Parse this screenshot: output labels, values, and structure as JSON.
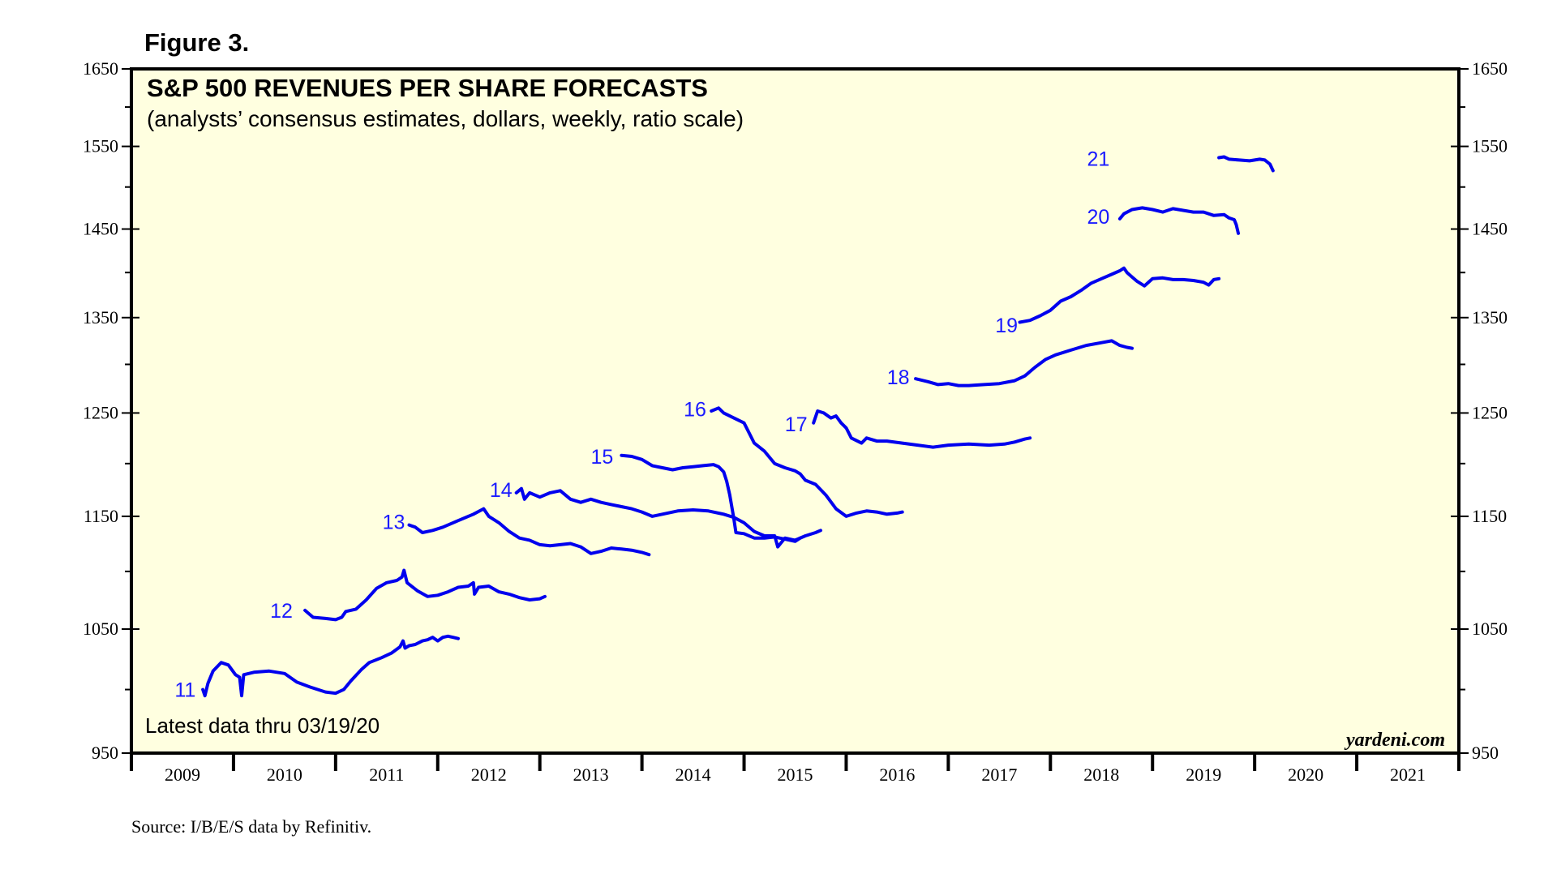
{
  "figure_label": "Figure 3.",
  "source": "Source: I/B/E/S data by Refinitiv.",
  "brand": "yardeni.com",
  "latest_note": "Latest data thru 03/19/20",
  "colors": {
    "series": "#0000ee",
    "label": "#1a1aff",
    "plot_bg": "#ffffe0",
    "frame": "#000000"
  },
  "chart_data": {
    "type": "line",
    "title": "S&P 500 REVENUES PER SHARE FORECASTS",
    "subtitle": "(analysts’ consensus estimates, dollars, weekly, ratio scale)",
    "scale": "log",
    "ylim": [
      950,
      1650
    ],
    "xlim": [
      2009.0,
      2022.0
    ],
    "y_ticks": [
      950,
      1050,
      1150,
      1250,
      1350,
      1450,
      1550,
      1650
    ],
    "y_tick_labels": [
      "950",
      "1050",
      "1150",
      "1250",
      "1350",
      "1450",
      "1550",
      "1650"
    ],
    "y_minor_ticks": [
      1000,
      1100,
      1200,
      1300,
      1400,
      1500,
      1600
    ],
    "x_tick_labels": [
      "2009",
      "2010",
      "2011",
      "2012",
      "2013",
      "2014",
      "2015",
      "2016",
      "2017",
      "2018",
      "2019",
      "2020",
      "2021"
    ],
    "series": [
      {
        "name": "11",
        "label_pos": [
          2009.63,
          1000
        ],
        "points": [
          [
            2009.7,
            1000
          ],
          [
            2009.72,
            995
          ],
          [
            2009.75,
            1005
          ],
          [
            2009.8,
            1015
          ],
          [
            2009.88,
            1022
          ],
          [
            2009.95,
            1020
          ],
          [
            2010.02,
            1012
          ],
          [
            2010.06,
            1010
          ],
          [
            2010.08,
            995
          ],
          [
            2010.1,
            1012
          ],
          [
            2010.2,
            1014
          ],
          [
            2010.35,
            1015
          ],
          [
            2010.5,
            1013
          ],
          [
            2010.62,
            1006
          ],
          [
            2010.75,
            1002
          ],
          [
            2010.9,
            998
          ],
          [
            2011.0,
            997
          ],
          [
            2011.08,
            1000
          ],
          [
            2011.15,
            1007
          ],
          [
            2011.25,
            1016
          ],
          [
            2011.33,
            1022
          ],
          [
            2011.45,
            1026
          ],
          [
            2011.55,
            1030
          ],
          [
            2011.63,
            1035
          ],
          [
            2011.66,
            1040
          ],
          [
            2011.68,
            1034
          ],
          [
            2011.72,
            1036
          ],
          [
            2011.78,
            1037
          ],
          [
            2011.85,
            1040
          ],
          [
            2011.9,
            1041
          ],
          [
            2011.95,
            1043
          ],
          [
            2012.0,
            1040
          ],
          [
            2012.05,
            1043
          ],
          [
            2012.1,
            1044
          ],
          [
            2012.15,
            1043
          ],
          [
            2012.2,
            1042
          ]
        ]
      },
      {
        "name": "12",
        "label_pos": [
          2010.58,
          1066
        ],
        "points": [
          [
            2010.7,
            1066
          ],
          [
            2010.78,
            1060
          ],
          [
            2010.9,
            1059
          ],
          [
            2011.0,
            1058
          ],
          [
            2011.06,
            1060
          ],
          [
            2011.1,
            1065
          ],
          [
            2011.2,
            1067
          ],
          [
            2011.3,
            1075
          ],
          [
            2011.4,
            1085
          ],
          [
            2011.5,
            1090
          ],
          [
            2011.6,
            1092
          ],
          [
            2011.65,
            1095
          ],
          [
            2011.67,
            1101
          ],
          [
            2011.7,
            1090
          ],
          [
            2011.8,
            1083
          ],
          [
            2011.9,
            1078
          ],
          [
            2012.0,
            1079
          ],
          [
            2012.1,
            1082
          ],
          [
            2012.2,
            1086
          ],
          [
            2012.3,
            1087
          ],
          [
            2012.35,
            1090
          ],
          [
            2012.36,
            1080
          ],
          [
            2012.4,
            1086
          ],
          [
            2012.5,
            1087
          ],
          [
            2012.6,
            1082
          ],
          [
            2012.7,
            1080
          ],
          [
            2012.8,
            1077
          ],
          [
            2012.9,
            1075
          ],
          [
            2013.0,
            1076
          ],
          [
            2013.05,
            1078
          ]
        ]
      },
      {
        "name": "13",
        "label_pos": [
          2011.68,
          1145
        ],
        "points": [
          [
            2011.72,
            1142
          ],
          [
            2011.78,
            1140
          ],
          [
            2011.85,
            1135
          ],
          [
            2011.95,
            1137
          ],
          [
            2012.05,
            1140
          ],
          [
            2012.2,
            1146
          ],
          [
            2012.35,
            1152
          ],
          [
            2012.45,
            1157
          ],
          [
            2012.5,
            1150
          ],
          [
            2012.6,
            1144
          ],
          [
            2012.7,
            1136
          ],
          [
            2012.8,
            1130
          ],
          [
            2012.9,
            1128
          ],
          [
            2013.0,
            1124
          ],
          [
            2013.1,
            1123
          ],
          [
            2013.2,
            1124
          ],
          [
            2013.3,
            1125
          ],
          [
            2013.4,
            1122
          ],
          [
            2013.5,
            1116
          ],
          [
            2013.6,
            1118
          ],
          [
            2013.7,
            1121
          ],
          [
            2013.8,
            1120
          ],
          [
            2013.9,
            1119
          ],
          [
            2014.0,
            1117
          ],
          [
            2014.07,
            1115
          ]
        ]
      },
      {
        "name": "14",
        "label_pos": [
          2012.73,
          1175
        ],
        "points": [
          [
            2012.77,
            1172
          ],
          [
            2012.82,
            1176
          ],
          [
            2012.85,
            1166
          ],
          [
            2012.9,
            1172
          ],
          [
            2013.0,
            1168
          ],
          [
            2013.1,
            1172
          ],
          [
            2013.2,
            1174
          ],
          [
            2013.3,
            1166
          ],
          [
            2013.4,
            1163
          ],
          [
            2013.5,
            1166
          ],
          [
            2013.6,
            1163
          ],
          [
            2013.7,
            1161
          ],
          [
            2013.8,
            1159
          ],
          [
            2013.9,
            1157
          ],
          [
            2014.0,
            1154
          ],
          [
            2014.1,
            1150
          ],
          [
            2014.2,
            1152
          ],
          [
            2014.35,
            1155
          ],
          [
            2014.5,
            1156
          ],
          [
            2014.65,
            1155
          ],
          [
            2014.8,
            1152
          ],
          [
            2014.9,
            1149
          ],
          [
            2015.0,
            1144
          ],
          [
            2015.1,
            1136
          ],
          [
            2015.2,
            1132
          ],
          [
            2015.3,
            1132
          ],
          [
            2015.33,
            1122
          ],
          [
            2015.4,
            1130
          ],
          [
            2015.5,
            1128
          ],
          [
            2015.6,
            1132
          ],
          [
            2015.7,
            1135
          ],
          [
            2015.75,
            1137
          ]
        ]
      },
      {
        "name": "15",
        "label_pos": [
          2013.72,
          1207
        ],
        "points": [
          [
            2013.8,
            1208
          ],
          [
            2013.9,
            1207
          ],
          [
            2014.0,
            1204
          ],
          [
            2014.1,
            1198
          ],
          [
            2014.2,
            1196
          ],
          [
            2014.3,
            1194
          ],
          [
            2014.4,
            1196
          ],
          [
            2014.5,
            1197
          ],
          [
            2014.6,
            1198
          ],
          [
            2014.7,
            1199
          ],
          [
            2014.75,
            1197
          ],
          [
            2014.8,
            1192
          ],
          [
            2014.83,
            1183
          ],
          [
            2014.86,
            1170
          ],
          [
            2014.9,
            1148
          ],
          [
            2014.92,
            1135
          ],
          [
            2015.0,
            1134
          ],
          [
            2015.1,
            1130
          ],
          [
            2015.2,
            1130
          ],
          [
            2015.3,
            1131
          ],
          [
            2015.4,
            1129
          ],
          [
            2015.5,
            1127
          ],
          [
            2015.55,
            1130
          ]
        ]
      },
      {
        "name": "16",
        "label_pos": [
          2014.63,
          1254
        ],
        "points": [
          [
            2014.68,
            1252
          ],
          [
            2014.75,
            1255
          ],
          [
            2014.8,
            1250
          ],
          [
            2014.9,
            1245
          ],
          [
            2015.0,
            1240
          ],
          [
            2015.05,
            1230
          ],
          [
            2015.1,
            1220
          ],
          [
            2015.2,
            1212
          ],
          [
            2015.3,
            1200
          ],
          [
            2015.4,
            1196
          ],
          [
            2015.5,
            1193
          ],
          [
            2015.55,
            1190
          ],
          [
            2015.6,
            1184
          ],
          [
            2015.7,
            1180
          ],
          [
            2015.8,
            1170
          ],
          [
            2015.9,
            1157
          ],
          [
            2016.0,
            1150
          ],
          [
            2016.1,
            1153
          ],
          [
            2016.2,
            1155
          ],
          [
            2016.3,
            1154
          ],
          [
            2016.4,
            1152
          ],
          [
            2016.5,
            1153
          ],
          [
            2016.55,
            1154
          ]
        ]
      },
      {
        "name": "17",
        "label_pos": [
          2015.62,
          1239
        ],
        "points": [
          [
            2015.68,
            1240
          ],
          [
            2015.72,
            1252
          ],
          [
            2015.78,
            1250
          ],
          [
            2015.85,
            1245
          ],
          [
            2015.9,
            1247
          ],
          [
            2015.95,
            1240
          ],
          [
            2016.0,
            1235
          ],
          [
            2016.05,
            1225
          ],
          [
            2016.15,
            1220
          ],
          [
            2016.2,
            1225
          ],
          [
            2016.3,
            1222
          ],
          [
            2016.4,
            1222
          ],
          [
            2016.55,
            1220
          ],
          [
            2016.7,
            1218
          ],
          [
            2016.85,
            1216
          ],
          [
            2017.0,
            1218
          ],
          [
            2017.2,
            1219
          ],
          [
            2017.4,
            1218
          ],
          [
            2017.55,
            1219
          ],
          [
            2017.65,
            1221
          ],
          [
            2017.75,
            1224
          ],
          [
            2017.8,
            1225
          ]
        ]
      },
      {
        "name": "18",
        "label_pos": [
          2016.62,
          1287
        ],
        "points": [
          [
            2016.68,
            1285
          ],
          [
            2016.8,
            1282
          ],
          [
            2016.9,
            1279
          ],
          [
            2017.0,
            1280
          ],
          [
            2017.1,
            1278
          ],
          [
            2017.2,
            1278
          ],
          [
            2017.35,
            1279
          ],
          [
            2017.5,
            1280
          ],
          [
            2017.65,
            1283
          ],
          [
            2017.75,
            1288
          ],
          [
            2017.85,
            1297
          ],
          [
            2017.95,
            1305
          ],
          [
            2018.05,
            1310
          ],
          [
            2018.2,
            1315
          ],
          [
            2018.35,
            1320
          ],
          [
            2018.5,
            1323
          ],
          [
            2018.6,
            1325
          ],
          [
            2018.68,
            1320
          ],
          [
            2018.75,
            1318
          ],
          [
            2018.8,
            1317
          ]
        ]
      },
      {
        "name": "19",
        "label_pos": [
          2017.68,
          1342
        ],
        "points": [
          [
            2017.7,
            1345
          ],
          [
            2017.8,
            1347
          ],
          [
            2017.9,
            1352
          ],
          [
            2018.0,
            1358
          ],
          [
            2018.1,
            1368
          ],
          [
            2018.2,
            1373
          ],
          [
            2018.3,
            1380
          ],
          [
            2018.4,
            1388
          ],
          [
            2018.5,
            1393
          ],
          [
            2018.6,
            1398
          ],
          [
            2018.68,
            1402
          ],
          [
            2018.72,
            1405
          ],
          [
            2018.75,
            1400
          ],
          [
            2018.8,
            1395
          ],
          [
            2018.85,
            1390
          ],
          [
            2018.92,
            1385
          ],
          [
            2019.0,
            1393
          ],
          [
            2019.1,
            1394
          ],
          [
            2019.2,
            1392
          ],
          [
            2019.3,
            1392
          ],
          [
            2019.4,
            1391
          ],
          [
            2019.5,
            1389
          ],
          [
            2019.55,
            1386
          ],
          [
            2019.6,
            1392
          ],
          [
            2019.65,
            1393
          ]
        ]
      },
      {
        "name": "20",
        "label_pos": [
          2018.58,
          1465
        ],
        "points": [
          [
            2018.68,
            1462
          ],
          [
            2018.72,
            1468
          ],
          [
            2018.8,
            1473
          ],
          [
            2018.9,
            1475
          ],
          [
            2019.0,
            1473
          ],
          [
            2019.1,
            1470
          ],
          [
            2019.2,
            1474
          ],
          [
            2019.3,
            1472
          ],
          [
            2019.4,
            1470
          ],
          [
            2019.5,
            1470
          ],
          [
            2019.6,
            1466
          ],
          [
            2019.7,
            1467
          ],
          [
            2019.75,
            1463
          ],
          [
            2019.8,
            1461
          ],
          [
            2019.82,
            1455
          ],
          [
            2019.84,
            1445
          ]
        ]
      },
      {
        "name": "21",
        "label_pos": [
          2018.58,
          1535
        ],
        "points": [
          [
            2019.65,
            1536
          ],
          [
            2019.7,
            1537
          ],
          [
            2019.75,
            1534
          ],
          [
            2019.85,
            1533
          ],
          [
            2019.95,
            1532
          ],
          [
            2020.05,
            1534
          ],
          [
            2020.1,
            1533
          ],
          [
            2020.15,
            1528
          ],
          [
            2020.18,
            1520
          ]
        ]
      }
    ]
  }
}
